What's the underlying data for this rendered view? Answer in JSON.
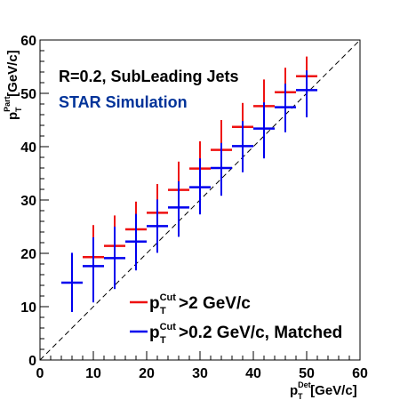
{
  "chart_data": {
    "type": "scatter",
    "xlabel": {
      "main": "p",
      "sub": "T",
      "sup": "Det",
      "rest": " [GeV/c]"
    },
    "ylabel": {
      "main": "p",
      "sub": "T",
      "sup": "Part",
      "rest": " [GeV/c]"
    },
    "xlim": [
      0,
      60
    ],
    "ylim": [
      0,
      60
    ],
    "xticks": [
      "0",
      "10",
      "20",
      "30",
      "40",
      "50",
      "60"
    ],
    "yticks": [
      "0",
      "10",
      "20",
      "30",
      "40",
      "50",
      "60"
    ],
    "grid": false,
    "diagonal": true,
    "annotations": {
      "line1": "R=0.2, SubLeading Jets",
      "line2": "STAR Simulation"
    },
    "colors": {
      "red": "#ee1111",
      "blue": "#0000ee",
      "sim": "#003399"
    },
    "legend_position": "bottom-right",
    "series": [
      {
        "legend": {
          "main": "p",
          "sub": "T",
          "sup": "Cut",
          "rest": ">2 GeV/c"
        },
        "color": "#ee1111",
        "x": [
          10,
          14,
          18,
          22,
          26,
          30,
          34,
          38,
          42,
          46,
          50
        ],
        "xerr": 2,
        "y": [
          19.3,
          21.4,
          24.5,
          27.6,
          31.9,
          35.9,
          39.4,
          43.7,
          47.6,
          50.2,
          53.2
        ],
        "ylo": [
          11.1,
          13.8,
          17.5,
          20.9,
          24.9,
          29.3,
          33.6,
          37.9,
          41.8,
          45.7,
          49.1
        ],
        "yhi": [
          25.3,
          27.1,
          29.7,
          33.0,
          37.2,
          41.0,
          45.0,
          48.2,
          52.6,
          54.8,
          56.9
        ]
      },
      {
        "legend": {
          "main": "p",
          "sub": "T",
          "sup": "Cut",
          "rest": ">0.2 GeV/c, Matched"
        },
        "color": "#0000ee",
        "x": [
          6,
          10,
          14,
          18,
          22,
          26,
          30,
          34,
          38,
          42,
          46,
          50
        ],
        "xerr": 2,
        "y": [
          14.5,
          17.6,
          19.1,
          22.2,
          25.1,
          28.6,
          32.4,
          36.0,
          40.1,
          43.4,
          47.4,
          50.6
        ],
        "ylo": [
          9.0,
          10.8,
          13.3,
          16.8,
          20.1,
          23.1,
          27.3,
          30.8,
          35.2,
          37.8,
          42.7,
          45.5
        ],
        "yhi": [
          20.1,
          23.0,
          25.0,
          27.4,
          30.1,
          33.5,
          37.8,
          40.7,
          44.8,
          48.3,
          51.8,
          54.3
        ]
      }
    ]
  }
}
